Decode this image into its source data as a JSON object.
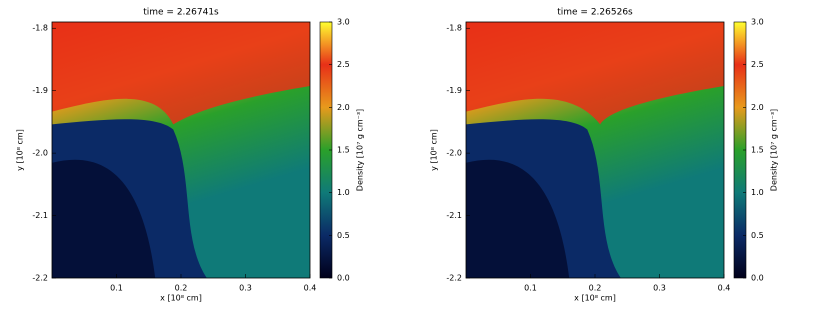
{
  "chart_data": [
    {
      "type": "heatmap",
      "title": "time = 2.26741s",
      "xlabel": "x [10⁸ cm]",
      "ylabel": "y [10⁸ cm]",
      "xlim": [
        0,
        0.4
      ],
      "xticks": [
        0.1,
        0.2,
        0.3,
        0.4
      ],
      "ylim": [
        -2.2,
        -1.79
      ],
      "yticks": [
        -1.8,
        -1.9,
        {
          "value": -2,
          "label": "-2.0"
        },
        -2.1,
        -2.2
      ],
      "colorbar": {
        "label": "Density [10⁷ g cm⁻³]",
        "lim": [
          0,
          3
        ],
        "ticks": [
          {
            "value": 0,
            "label": "0.0"
          },
          0.5,
          {
            "value": 1,
            "label": "1.0"
          },
          1.5,
          {
            "value": 2,
            "label": "2.0"
          },
          2.5,
          {
            "value": 3,
            "label": "3.0"
          }
        ],
        "colors": [
          "#00001a",
          "#0b2a66",
          "#0f7a78",
          "#2aa02a",
          "#e89a1c",
          "#e83018",
          "#ffff30"
        ]
      }
    },
    {
      "type": "heatmap",
      "title": "time = 2.26526s",
      "xlabel": "x [10⁸ cm]",
      "ylabel": "y [10⁸ cm]",
      "xlim": [
        0,
        0.4
      ],
      "xticks": [
        0.1,
        0.2,
        0.3,
        0.4
      ],
      "ylim": [
        -2.2,
        -1.79
      ],
      "yticks": [
        -1.8,
        -1.9,
        {
          "value": -2,
          "label": "-2.0"
        },
        -2.1,
        -2.2
      ],
      "colorbar": {
        "label": "Density [10⁷ g cm⁻³]",
        "lim": [
          0,
          3
        ],
        "ticks": [
          {
            "value": 0,
            "label": "0.0"
          },
          0.5,
          {
            "value": 1,
            "label": "1.0"
          },
          1.5,
          {
            "value": 2,
            "label": "2.0"
          },
          2.5,
          {
            "value": 3,
            "label": "3.0"
          }
        ],
        "colors": [
          "#00001a",
          "#0b2a66",
          "#0f7a78",
          "#2aa02a",
          "#e89a1c",
          "#e83018",
          "#ffff30"
        ]
      }
    }
  ]
}
